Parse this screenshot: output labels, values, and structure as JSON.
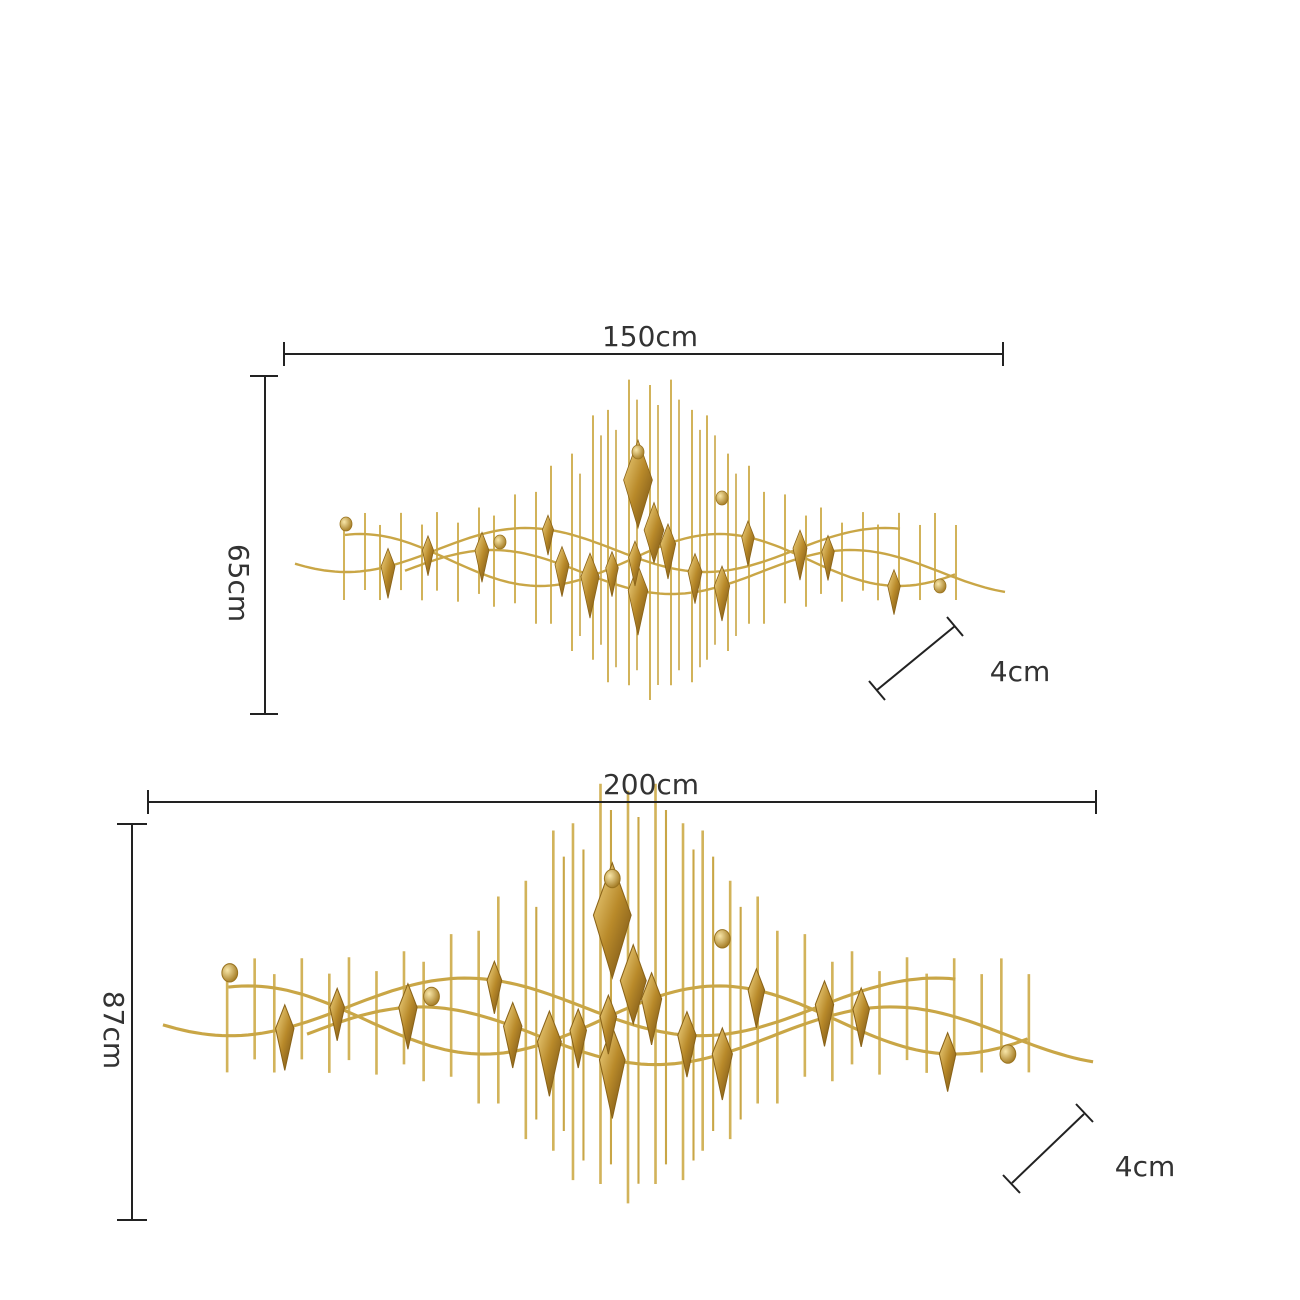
{
  "products": [
    {
      "width": "150cm",
      "height": "65cm",
      "depth": "4cm"
    },
    {
      "width": "200cm",
      "height": "87cm",
      "depth": "4cm"
    }
  ]
}
